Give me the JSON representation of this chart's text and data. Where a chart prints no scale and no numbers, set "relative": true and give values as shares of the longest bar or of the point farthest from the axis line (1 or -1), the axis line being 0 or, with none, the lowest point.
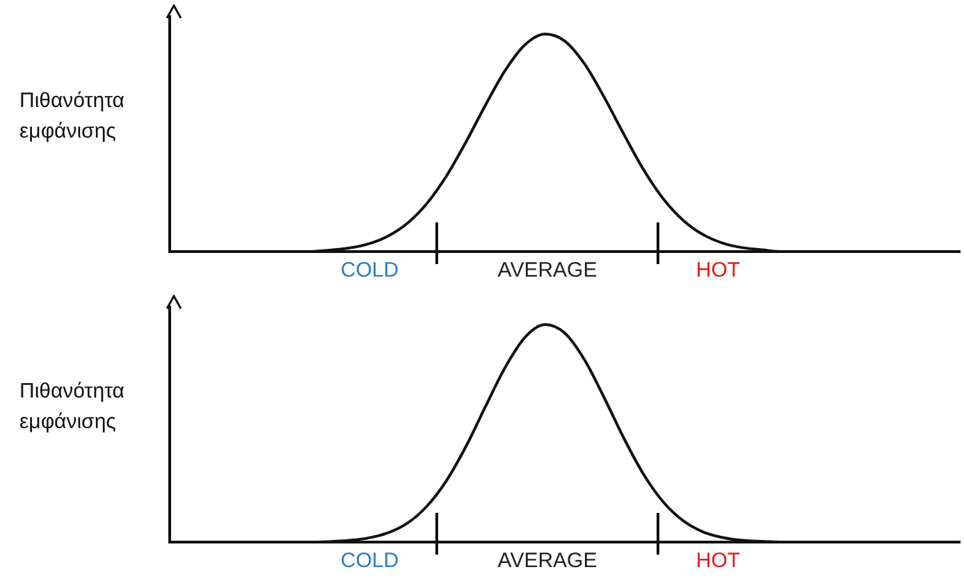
{
  "chart_data": [
    {
      "type": "line",
      "ylabel": "Πιθανότητα εμφάνισης",
      "relative": true,
      "marker": "none",
      "annotations": [
        "COLD",
        "AVERAGE",
        "HOT"
      ],
      "categories": [
        null,
        null,
        null,
        null,
        null,
        null,
        null,
        null,
        null,
        null,
        null,
        null,
        null,
        null,
        null,
        null,
        null,
        null,
        null,
        null,
        null,
        null,
        null,
        null,
        null,
        null,
        null,
        null,
        null,
        null,
        null,
        null,
        null,
        null,
        null,
        null,
        null,
        null,
        null,
        null,
        null
      ],
      "series": [
        {
          "color": "#111111",
          "values": [
            null,
            null,
            null,
            null,
            null,
            null,
            0,
            0,
            0.006,
            0.015,
            0.034,
            0.069,
            0.128,
            0.219,
            0.346,
            0.504,
            0.676,
            0.835,
            0.952,
            1,
            0.968,
            0.863,
            0.709,
            0.538,
            0.375,
            0.241,
            0.143,
            0.078,
            0.039,
            0.018,
            0.008,
            0,
            0,
            null,
            null,
            null,
            null,
            null,
            null,
            null,
            null
          ]
        }
      ]
    },
    {
      "type": "line",
      "ylabel": "Πιθανότητα εμφάνισης",
      "relative": true,
      "marker": "none",
      "annotations": [
        "COLD",
        "AVERAGE",
        "HOT"
      ],
      "categories": [
        null,
        null,
        null,
        null,
        null,
        null,
        null,
        null,
        null,
        null,
        null,
        null,
        null,
        null,
        null,
        null,
        null,
        null,
        null,
        null,
        null,
        null,
        null,
        null,
        null,
        null,
        null,
        null,
        null,
        null,
        null,
        null,
        null,
        null,
        null,
        null,
        null,
        null,
        null,
        null,
        null
      ],
      "series": [
        {
          "color": "#111111",
          "values": [
            null,
            null,
            null,
            null,
            null,
            null,
            0,
            0,
            0.002,
            0.007,
            0.018,
            0.041,
            0.085,
            0.163,
            0.281,
            0.44,
            0.626,
            0.806,
            0.943,
            1,
            0.961,
            0.838,
            0.663,
            0.476,
            0.31,
            0.183,
            0.098,
            0.047,
            0.021,
            0.008,
            0.003,
            0,
            0,
            null,
            null,
            null,
            null,
            null,
            null,
            null,
            null
          ]
        }
      ]
    }
  ]
}
